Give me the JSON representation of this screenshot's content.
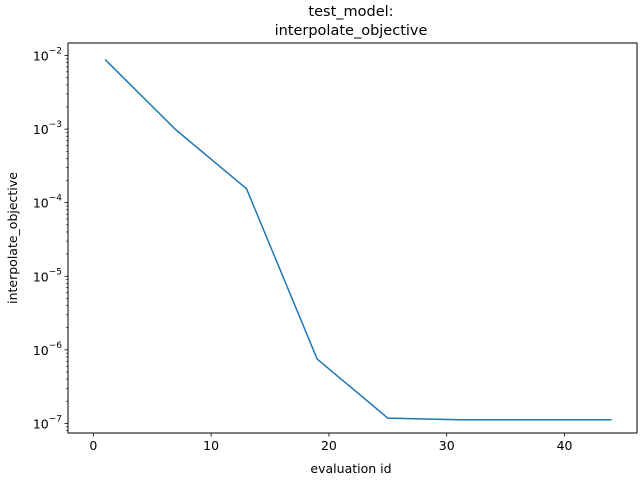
{
  "chart_data": {
    "type": "line",
    "title_line1": "test_model:",
    "title_line2": "interpolate_objective",
    "xlabel": "evaluation id",
    "ylabel": "interpolate_objective",
    "xlim": [
      -2.15,
      46.15
    ],
    "ylim_log10": [
      -7.13,
      -1.83
    ],
    "y_scale": "log",
    "x_ticks": [
      {
        "value": 0,
        "label": "0"
      },
      {
        "value": 10,
        "label": "10"
      },
      {
        "value": 20,
        "label": "20"
      },
      {
        "value": 30,
        "label": "30"
      },
      {
        "value": 40,
        "label": "40"
      }
    ],
    "y_ticks": [
      {
        "exp": -7,
        "base": "10",
        "sup": "−7"
      },
      {
        "exp": -6,
        "base": "10",
        "sup": "−6"
      },
      {
        "exp": -5,
        "base": "10",
        "sup": "−5"
      },
      {
        "exp": -4,
        "base": "10",
        "sup": "−4"
      },
      {
        "exp": -3,
        "base": "10",
        "sup": "−3"
      },
      {
        "exp": -2,
        "base": "10",
        "sup": "−2"
      }
    ],
    "series": [
      {
        "color": "#1f77b4",
        "x": [
          1,
          7,
          13,
          19,
          25,
          31,
          37,
          44
        ],
        "y": [
          0.0088,
          0.00098,
          0.000155,
          7.5e-07,
          1.18e-07,
          1.12e-07,
          1.12e-07,
          1.12e-07
        ]
      }
    ],
    "grid": false,
    "legend": "none"
  }
}
